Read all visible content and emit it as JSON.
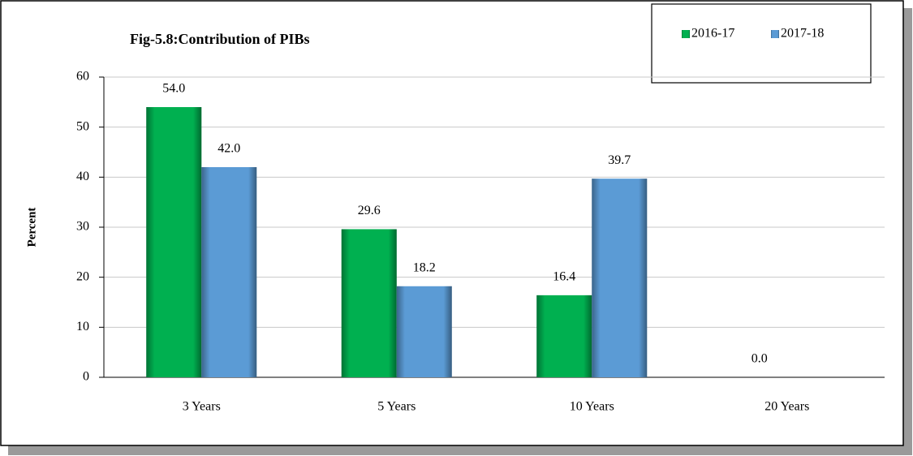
{
  "chart_data": {
    "type": "bar",
    "title": "Fig-5.8:Contribution of PIBs",
    "y_label": "Percent",
    "categories": [
      "3 Years",
      "5 Years",
      "10 Years",
      "20 Years"
    ],
    "series": [
      {
        "name": "2016-17",
        "color": "#00b050",
        "values": [
          54.0,
          29.6,
          16.4,
          0.0
        ],
        "value_labels": [
          "54.0",
          "29.6",
          "16.4",
          "0.0"
        ]
      },
      {
        "name": "2017-18",
        "color": "#5b9bd5",
        "values": [
          42.0,
          18.2,
          39.7,
          null
        ],
        "value_labels": [
          "42.0",
          "18.2",
          "39.7",
          null
        ]
      }
    ],
    "ylim": [
      0,
      60
    ],
    "yticks": [
      0,
      10,
      20,
      30,
      40,
      50,
      60
    ],
    "grid": true,
    "legend": "top-right"
  }
}
